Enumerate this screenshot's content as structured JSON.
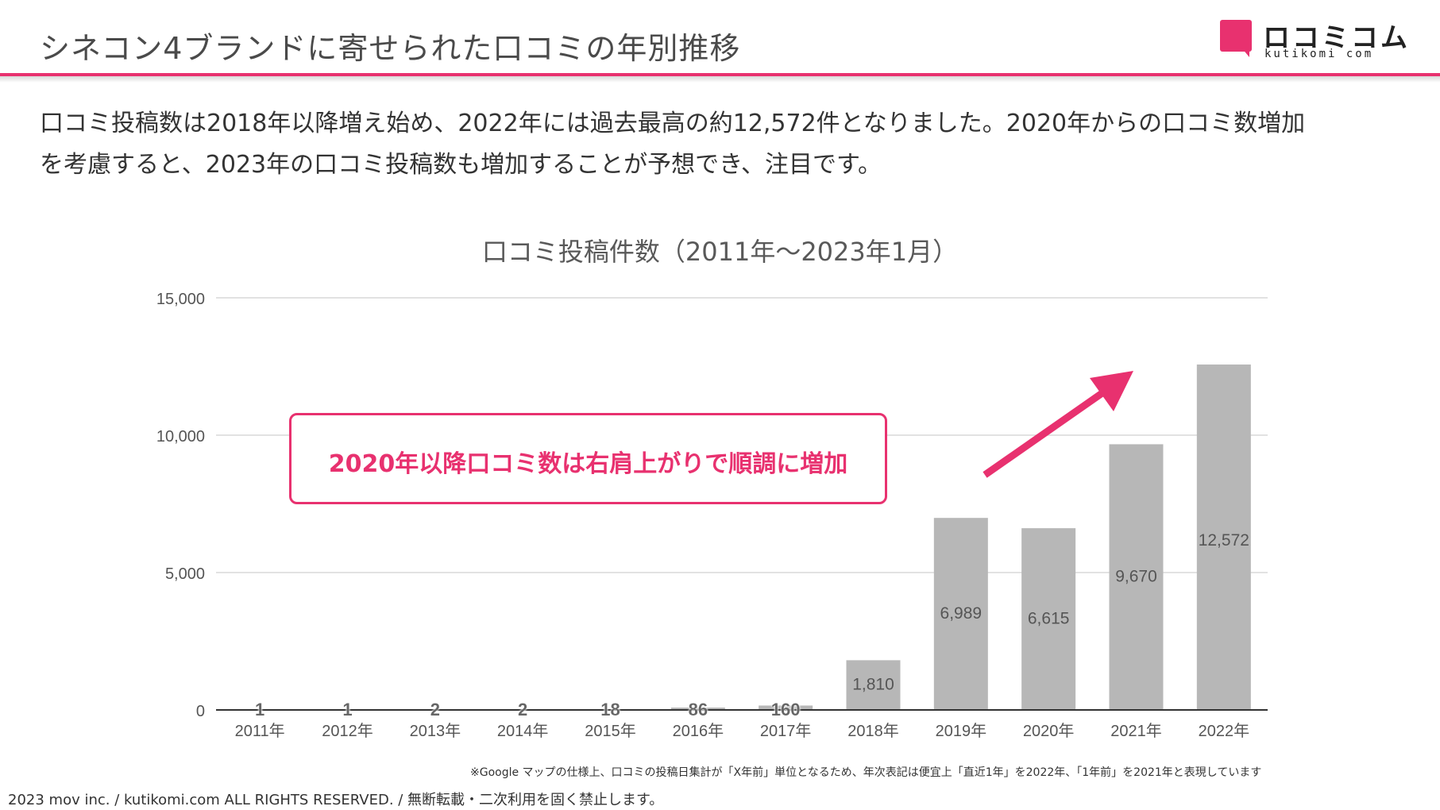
{
  "header": {
    "title": "シネコン4ブランドに寄せられた口コミの年別推移",
    "logo_text": "ロコミコム",
    "logo_sub": "kutikomi com"
  },
  "intro": {
    "line1": "口コミ投稿数は2018年以降増え始め、2022年には過去最高の約12,572件となりました。2020年からの口コミ数増加",
    "line2": "を考慮すると、2023年の口コミ投稿数も増加することが予想でき、注目です。"
  },
  "callout": {
    "text": "2020年以降口コミ数は右肩上がりで順調に増加"
  },
  "footnote": "※Google マップの仕様上、口コミの投稿日集計が「X年前」単位となるため、年次表記は便宜上「直近1年」を2022年、「1年前」を2021年と表現しています",
  "copyright": "2023 mov inc. / kutikomi.com ALL RIGHTS RESERVED. / 無断転載・二次利用を固く禁止します。",
  "colors": {
    "accent": "#e8316f",
    "bar": "#b7b7b7",
    "grid": "#d9d9d9",
    "axis": "#333333"
  },
  "chart_data": {
    "type": "bar",
    "title": "口コミ投稿件数（2011年～2023年1月）",
    "categories": [
      "2011年",
      "2012年",
      "2013年",
      "2014年",
      "2015年",
      "2016年",
      "2017年",
      "2018年",
      "2019年",
      "2020年",
      "2021年",
      "2022年"
    ],
    "values": [
      1,
      1,
      2,
      2,
      18,
      86,
      160,
      1810,
      6989,
      6615,
      9670,
      12572
    ],
    "value_labels": [
      "1",
      "1",
      "2",
      "2",
      "18",
      "86",
      "160",
      "1,810",
      "6,989",
      "6,615",
      "9,670",
      "12,572"
    ],
    "ylim": [
      0,
      15000
    ],
    "yticks": [
      0,
      5000,
      10000,
      15000
    ],
    "ytick_labels": [
      "0",
      "5,000",
      "10,000",
      "15,000"
    ],
    "grid": true,
    "annotation": "upward trend arrow over 2020–2022"
  }
}
